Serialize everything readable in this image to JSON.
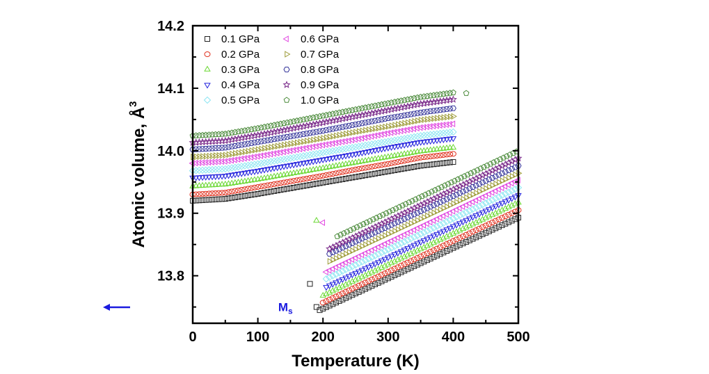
{
  "chart_data": {
    "type": "scatter",
    "xlabel": "Temperature (K)",
    "ylabel": "Atomic volume, Å",
    "ylabel_superscript": "3",
    "xlim": [
      0,
      500
    ],
    "ylim": [
      13.724,
      14.2
    ],
    "xticks": [
      "0",
      "100",
      "200",
      "300",
      "400",
      "500"
    ],
    "yticks": [
      "13.8",
      "13.9",
      "14.0",
      "14.1",
      "14.2"
    ],
    "grid": false,
    "legend_position": "top-left",
    "annotation": {
      "text": "M",
      "subscript": "s",
      "x": 190,
      "y": 13.75,
      "color": "#1a1adf"
    },
    "low_branch_x": [
      0,
      50,
      100,
      150,
      200,
      250,
      300,
      350,
      400
    ],
    "series": [
      {
        "name": "0.1 GPa",
        "marker": "square",
        "color": "#222222",
        "low": [
          13.92,
          13.923,
          13.931,
          13.94,
          13.949,
          13.958,
          13.967,
          13.976,
          13.982
        ],
        "high": [
          [
            195,
            13.745
          ],
          [
            500,
            13.893
          ]
        ],
        "extra": [
          [
            180,
            13.787
          ],
          [
            190,
            13.75
          ]
        ]
      },
      {
        "name": "0.2 GPa",
        "marker": "circle",
        "color": "#e0301e",
        "low": [
          13.93,
          13.933,
          13.942,
          13.951,
          13.96,
          13.97,
          13.979,
          13.989,
          13.995
        ],
        "high": [
          [
            200,
            13.757
          ],
          [
            500,
            13.905
          ]
        ],
        "extra": []
      },
      {
        "name": "0.3 GPa",
        "marker": "triangle-up",
        "color": "#6ad832",
        "low": [
          13.943,
          13.946,
          13.954,
          13.963,
          13.972,
          13.981,
          13.99,
          13.999,
          14.005
        ],
        "high": [
          [
            200,
            13.768
          ],
          [
            500,
            13.917
          ]
        ],
        "extra": [
          [
            190,
            13.888
          ]
        ]
      },
      {
        "name": "0.4 GPa",
        "marker": "triangle-down",
        "color": "#2222dd",
        "low": [
          13.957,
          13.96,
          13.968,
          13.977,
          13.986,
          13.995,
          14.005,
          14.014,
          14.02
        ],
        "high": [
          [
            205,
            13.782
          ],
          [
            500,
            13.929
          ]
        ],
        "extra": []
      },
      {
        "name": "0.5 GPa",
        "marker": "diamond",
        "color": "#8ee6f2",
        "low": [
          13.968,
          13.971,
          13.979,
          13.988,
          13.997,
          14.006,
          14.015,
          14.024,
          14.03
        ],
        "high": [
          [
            205,
            13.795
          ],
          [
            500,
            13.941
          ]
        ],
        "extra": []
      },
      {
        "name": "0.6 GPa",
        "marker": "triangle-left",
        "color": "#e044e0",
        "low": [
          13.98,
          13.983,
          13.991,
          14.0,
          14.009,
          14.018,
          14.028,
          14.037,
          14.043
        ],
        "high": [
          [
            205,
            13.806
          ],
          [
            500,
            13.953
          ]
        ],
        "extra": [
          [
            200,
            13.885
          ]
        ]
      },
      {
        "name": "0.7 GPa",
        "marker": "triangle-right",
        "color": "#9c9a36",
        "low": [
          13.99,
          13.993,
          14.002,
          14.011,
          14.02,
          14.03,
          14.039,
          14.049,
          14.055
        ],
        "high": [
          [
            210,
            13.823
          ],
          [
            500,
            13.964
          ]
        ],
        "extra": []
      },
      {
        "name": "0.8 GPa",
        "marker": "hexagon",
        "color": "#34349a",
        "low": [
          14.002,
          14.005,
          14.014,
          14.023,
          14.032,
          14.042,
          14.052,
          14.061,
          14.068
        ],
        "high": [
          [
            210,
            13.835
          ],
          [
            500,
            13.976
          ]
        ],
        "extra": []
      },
      {
        "name": "0.9 GPa",
        "marker": "star",
        "color": "#7a2a8a",
        "low": [
          14.013,
          14.016,
          14.025,
          14.035,
          14.045,
          14.055,
          14.065,
          14.075,
          14.082
        ],
        "high": [
          [
            210,
            13.843
          ],
          [
            500,
            13.988
          ]
        ],
        "extra": []
      },
      {
        "name": "1.0 GPa",
        "marker": "pentagon",
        "color": "#4a8a3a",
        "low": [
          14.024,
          14.027,
          14.036,
          14.046,
          14.056,
          14.066,
          14.076,
          14.086,
          14.093
        ],
        "high": [
          [
            222,
            13.863
          ],
          [
            500,
            14.0
          ]
        ],
        "extra": [
          [
            420,
            14.092
          ]
        ]
      }
    ]
  }
}
